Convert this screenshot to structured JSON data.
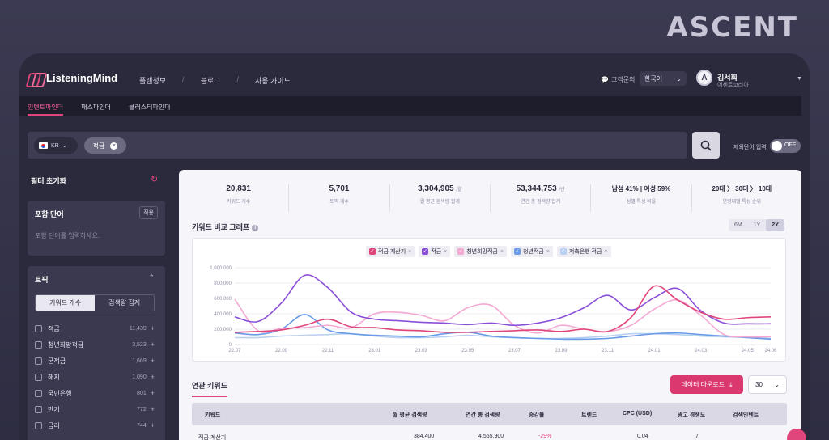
{
  "brand": "ASCENT",
  "app": {
    "logo_text": "ListeningMind",
    "nav": [
      "플랜정보",
      "블로그",
      "사용 가이드"
    ],
    "help": "고객문의",
    "language": "한국어",
    "user": {
      "initial": "A",
      "name": "김서희",
      "org": "어센트코리아"
    }
  },
  "subtabs": [
    "인텐트파인더",
    "패스파인더",
    "클러스터파인더"
  ],
  "search": {
    "country": "KR",
    "keyword_chip": "적금",
    "exclude_label": "제외단어 입력",
    "toggle_text": "OFF"
  },
  "sidebar": {
    "reset_label": "필터 초기화",
    "include": {
      "title": "포함 단어",
      "button": "적용",
      "placeholder": "포함 단어를 입력하세요."
    },
    "topic": {
      "title": "토픽",
      "segments": [
        "키워드 개수",
        "검색량 집계"
      ],
      "items": [
        {
          "name": "적금",
          "count": "11,439"
        },
        {
          "name": "청년희망적금",
          "count": "3,523"
        },
        {
          "name": "군적금",
          "count": "1,669"
        },
        {
          "name": "해지",
          "count": "1,090"
        },
        {
          "name": "국민은행",
          "count": "801"
        },
        {
          "name": "만기",
          "count": "772"
        },
        {
          "name": "금리",
          "count": "744"
        }
      ]
    }
  },
  "stats": [
    {
      "value": "20,831",
      "unit": "",
      "label": "키워드 개수"
    },
    {
      "value": "5,701",
      "unit": "",
      "label": "토픽 개수"
    },
    {
      "value": "3,304,905",
      "unit": "/월",
      "label": "월 평균 검색량 합계"
    },
    {
      "value": "53,344,753",
      "unit": "/년",
      "label": "연간 총 검색량 합계"
    },
    {
      "value": "남성 41% | 여성 59%",
      "unit": "",
      "label": "성별 특성 비율"
    },
    {
      "value": "20대 〉 30대 〉 10대",
      "unit": "",
      "label": "연령대별 특성 순위"
    }
  ],
  "graph": {
    "title": "키워드 비교 그래프",
    "periods": [
      "6M",
      "1Y",
      "2Y"
    ],
    "active_period": "2Y"
  },
  "chart_data": {
    "type": "line",
    "x": [
      "22.07",
      "22.08",
      "22.09",
      "22.10",
      "22.11",
      "22.12",
      "23.01",
      "23.02",
      "23.03",
      "23.04",
      "23.05",
      "23.06",
      "23.07",
      "23.08",
      "23.09",
      "23.10",
      "23.11",
      "23.12",
      "24.01",
      "24.02",
      "24.03",
      "24.04",
      "24.05",
      "24.06"
    ],
    "x_tick_labels": [
      "22.07",
      "22.09",
      "22.11",
      "23.01",
      "23.03",
      "23.05",
      "23.07",
      "23.09",
      "23.11",
      "24.01",
      "24.03",
      "24.05",
      "24.06"
    ],
    "ylim": [
      0,
      1000000
    ],
    "y_ticks": [
      "0",
      "200,000",
      "400,000",
      "600,000",
      "800,000",
      "1,000,000"
    ],
    "grid": true,
    "legend_position": "top",
    "series": [
      {
        "name": "적금 계산기",
        "color": "#e0457b",
        "values": [
          160000,
          170000,
          190000,
          250000,
          330000,
          230000,
          220000,
          190000,
          180000,
          160000,
          160000,
          170000,
          180000,
          190000,
          170000,
          200000,
          170000,
          350000,
          760000,
          580000,
          420000,
          330000,
          350000,
          360000
        ]
      },
      {
        "name": "적금",
        "color": "#8a4fd8",
        "values": [
          360000,
          300000,
          540000,
          900000,
          740000,
          420000,
          330000,
          310000,
          290000,
          280000,
          260000,
          280000,
          250000,
          280000,
          350000,
          480000,
          640000,
          450000,
          610000,
          730000,
          440000,
          280000,
          270000,
          270000
        ]
      },
      {
        "name": "청년희망적금",
        "color": "#f3a9d2",
        "values": [
          590000,
          180000,
          210000,
          220000,
          250000,
          220000,
          400000,
          420000,
          380000,
          310000,
          480000,
          510000,
          250000,
          150000,
          250000,
          200000,
          170000,
          250000,
          460000,
          580000,
          380000,
          130000,
          100000,
          100000
        ]
      },
      {
        "name": "청년적금",
        "color": "#6a9be8",
        "values": [
          150000,
          130000,
          200000,
          390000,
          190000,
          140000,
          120000,
          110000,
          100000,
          140000,
          160000,
          110000,
          90000,
          80000,
          70000,
          70000,
          80000,
          110000,
          140000,
          150000,
          130000,
          110000,
          90000,
          70000
        ]
      },
      {
        "name": "저축은행 적금",
        "color": "#b9d0f2",
        "values": [
          90000,
          90000,
          110000,
          120000,
          130000,
          140000,
          110000,
          90000,
          90000,
          100000,
          120000,
          100000,
          90000,
          80000,
          80000,
          90000,
          110000,
          140000,
          140000,
          130000,
          110000,
          100000,
          90000,
          80000
        ]
      }
    ]
  },
  "related": {
    "title": "연관 키워드",
    "download_label": "데이터 다운로드",
    "page_size": "30",
    "columns": [
      "키워드",
      "월 평균 검색량",
      "연간 총 검색량",
      "증감률",
      "트렌드",
      "CPC (USD)",
      "광고 경쟁도",
      "검색인텐트"
    ],
    "rows": [
      {
        "keyword": "적금 계산기",
        "monthly": "384,400",
        "annual": "4,555,900",
        "growth": "-29%",
        "cpc": "0.04",
        "competition": "7"
      }
    ]
  }
}
